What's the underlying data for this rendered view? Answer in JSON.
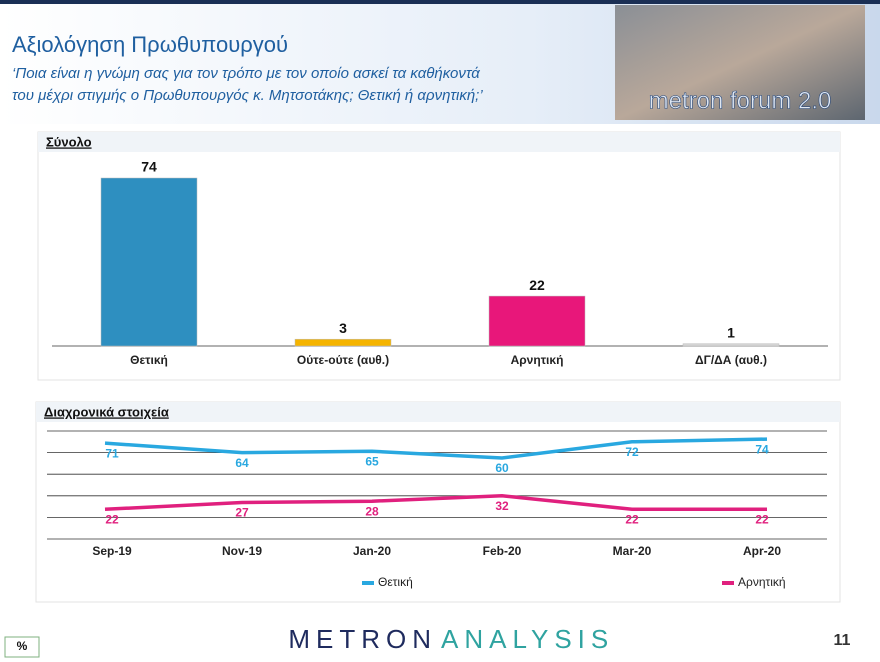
{
  "header": {
    "title": "Αξιολόγηση Πρωθυπουργού",
    "subtitle_lines": [
      "‘Ποια είναι η γνώμη σας για τον τρόπο με τον οποίο ασκεί τα καθήκοντά",
      "του μέχρι στιγμής ο Πρωθυπουργός κ. Μητσοτάκης; Θετική ή αρνητική;’"
    ],
    "logo": "metron forum 2.0"
  },
  "chart_data": [
    {
      "type": "bar",
      "title": "Σύνολο",
      "categories": [
        "Θετική",
        "Ούτε-ούτε (αυθ.)",
        "Αρνητική",
        "ΔΓ/ΔΑ (αυθ.)"
      ],
      "values": [
        74,
        3,
        22,
        1
      ],
      "colors": [
        "#2e8fc0",
        "#f5b400",
        "#e8177a",
        "#d4d4d4"
      ]
    },
    {
      "type": "line",
      "title": "Διαχρονικά στοιχεία",
      "categories": [
        "Sep-19",
        "Nov-19",
        "Jan-20",
        "Feb-20",
        "Mar-20",
        "Apr-20"
      ],
      "series": [
        {
          "name": "Θετική",
          "color": "#29a8e0",
          "values": [
            71,
            64,
            65,
            60,
            72,
            74
          ]
        },
        {
          "name": "Αρνητική",
          "color": "#e0207e",
          "values": [
            22,
            27,
            28,
            32,
            22,
            22
          ]
        }
      ],
      "ylim": [
        0,
        80
      ],
      "yticks": [
        0,
        16,
        32,
        48,
        64,
        80
      ],
      "grid": true
    }
  ],
  "footer": {
    "badge": "%",
    "brand": [
      "METRON",
      "ANALYSIS"
    ],
    "page": "11"
  }
}
